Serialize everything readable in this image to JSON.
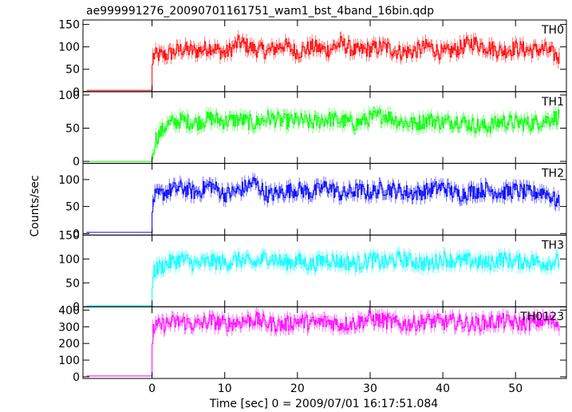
{
  "title": "ae999991276_20090701161751_wam1_bst_4band_16bin.qdp",
  "xlabel": "Time [sec] 0 = 2009/07/01 16:17:51.084",
  "ylabel": "Counts/sec",
  "chart_data": [
    {
      "type": "line",
      "name": "TH0",
      "color": "#ff0000",
      "xlim": [
        -9.5,
        57
      ],
      "ylim": [
        0,
        160
      ],
      "yticks": [
        0,
        50,
        100,
        150
      ],
      "xticks": [
        0,
        10,
        20,
        30,
        40,
        50
      ],
      "x": [
        -9,
        -5,
        -0.1,
        0,
        0.1,
        2,
        4,
        6,
        8,
        10,
        12,
        14,
        16,
        18,
        20,
        22,
        24,
        26,
        28,
        30,
        32,
        34,
        36,
        38,
        40,
        42,
        44,
        46,
        48,
        50,
        52,
        54,
        56
      ],
      "y": [
        3,
        3,
        3,
        60,
        80,
        82,
        95,
        90,
        100,
        85,
        110,
        95,
        90,
        105,
        88,
        100,
        92,
        108,
        90,
        95,
        100,
        88,
        90,
        102,
        85,
        95,
        110,
        100,
        90,
        98,
        92,
        95,
        75
      ]
    },
    {
      "type": "line",
      "name": "TH1",
      "color": "#00ff00",
      "xlim": [
        -9.5,
        57
      ],
      "ylim": [
        -3,
        105
      ],
      "yticks": [
        0,
        50,
        100
      ],
      "xticks": [
        0,
        10,
        20,
        30,
        40,
        50
      ],
      "x": [
        -9,
        -5,
        -0.1,
        0,
        0.5,
        2,
        4,
        6,
        8,
        10,
        12,
        14,
        16,
        18,
        20,
        22,
        24,
        26,
        28,
        30,
        32,
        34,
        36,
        38,
        40,
        42,
        44,
        46,
        48,
        50,
        52,
        54,
        56
      ],
      "y": [
        0,
        0,
        0,
        10,
        35,
        55,
        62,
        58,
        65,
        60,
        63,
        57,
        66,
        60,
        62,
        58,
        64,
        61,
        57,
        65,
        70,
        60,
        56,
        63,
        58,
        62,
        55,
        52,
        60,
        58,
        57,
        62,
        68
      ]
    },
    {
      "type": "line",
      "name": "TH2",
      "color": "#0000ff",
      "xlim": [
        -9.5,
        57
      ],
      "ylim": [
        -3,
        130
      ],
      "yticks": [
        0,
        50,
        100
      ],
      "xticks": [
        0,
        10,
        20,
        30,
        40,
        50
      ],
      "x": [
        -9,
        -5,
        -0.1,
        0,
        0.1,
        2,
        4,
        6,
        8,
        10,
        12,
        14,
        16,
        18,
        20,
        22,
        24,
        26,
        28,
        30,
        32,
        34,
        36,
        38,
        40,
        42,
        44,
        46,
        48,
        50,
        52,
        54,
        56
      ],
      "y": [
        2,
        2,
        2,
        40,
        65,
        78,
        85,
        75,
        90,
        72,
        80,
        95,
        70,
        78,
        82,
        75,
        88,
        72,
        80,
        76,
        84,
        78,
        74,
        80,
        86,
        72,
        78,
        82,
        75,
        80,
        74,
        78,
        55
      ]
    },
    {
      "type": "line",
      "name": "TH3",
      "color": "#00ffff",
      "xlim": [
        -9.5,
        57
      ],
      "ylim": [
        0,
        150
      ],
      "yticks": [
        0,
        50,
        100,
        150
      ],
      "xticks": [
        0,
        10,
        20,
        30,
        40,
        50
      ],
      "x": [
        -9,
        -5,
        -0.1,
        0,
        0.1,
        2,
        4,
        6,
        8,
        10,
        12,
        14,
        16,
        18,
        20,
        22,
        24,
        26,
        28,
        30,
        32,
        34,
        36,
        38,
        40,
        42,
        44,
        46,
        48,
        50,
        52,
        54,
        56
      ],
      "y": [
        2,
        2,
        2,
        40,
        75,
        90,
        100,
        88,
        95,
        92,
        98,
        90,
        105,
        92,
        96,
        88,
        100,
        94,
        90,
        98,
        92,
        100,
        95,
        88,
        102,
        94,
        96,
        90,
        100,
        94,
        96,
        92,
        95
      ]
    },
    {
      "type": "line",
      "name": "TH0123",
      "color": "#ff00ff",
      "xlim": [
        -9.5,
        57
      ],
      "ylim": [
        -10,
        420
      ],
      "yticks": [
        0,
        100,
        200,
        300,
        400
      ],
      "xticks": [
        0,
        10,
        20,
        30,
        40,
        50
      ],
      "x": [
        -9,
        -5,
        -0.1,
        0,
        0.1,
        2,
        4,
        6,
        8,
        10,
        12,
        14,
        16,
        18,
        20,
        22,
        24,
        26,
        28,
        30,
        32,
        34,
        36,
        38,
        40,
        42,
        44,
        46,
        48,
        50,
        52,
        54,
        56
      ],
      "y": [
        5,
        5,
        5,
        200,
        290,
        320,
        330,
        310,
        335,
        315,
        330,
        345,
        320,
        310,
        335,
        320,
        330,
        315,
        325,
        350,
        335,
        315,
        320,
        335,
        325,
        330,
        315,
        325,
        335,
        320,
        325,
        340,
        320
      ]
    }
  ]
}
